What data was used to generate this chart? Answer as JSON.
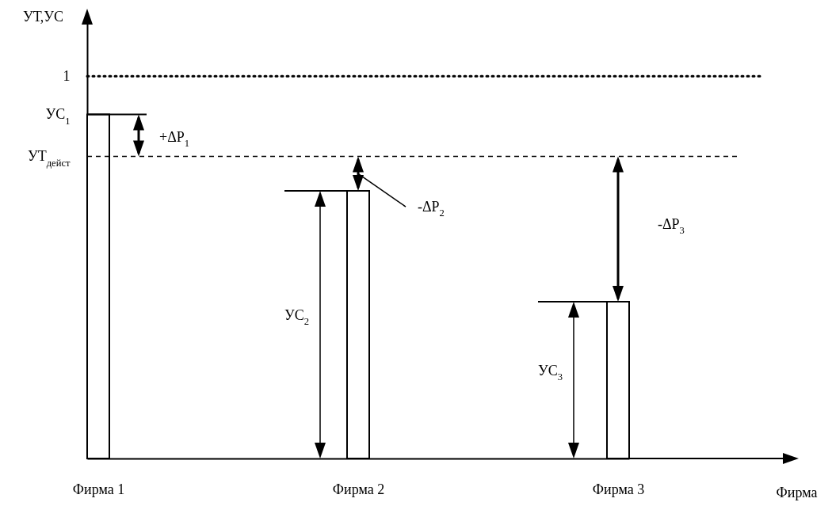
{
  "chart_data": {
    "type": "bar",
    "xlabel": "Фирма",
    "ylabel": "УТ,УС",
    "categories": [
      "Фирма 1",
      "Фирма 2",
      "Фирма 3"
    ],
    "values": [
      0.9,
      0.7,
      0.41
    ],
    "color": "#ffffff",
    "ylim": [
      0,
      1.16
    ],
    "yticks": [
      {
        "value": 0.79,
        "label": "УТ$_{дейст}$"
      },
      {
        "value": 0.9,
        "label": "УС$_{1}$"
      },
      1
    ],
    "ref_lines": [
      {
        "axis": "y",
        "value": 1,
        "line_style": "dotted"
      },
      {
        "axis": "y",
        "value": 0.79,
        "line_style": "dashed"
      }
    ],
    "annotations": [
      "+ΔP$_{1}$",
      "-ΔP$_{2}$",
      "УС$_{2}$",
      "-ΔP$_{3}$",
      "УС$_{3}$"
    ]
  }
}
